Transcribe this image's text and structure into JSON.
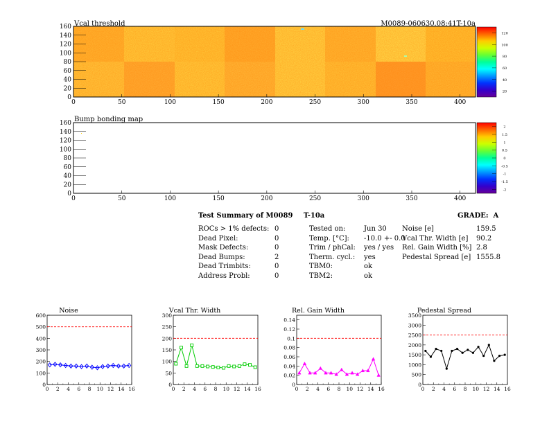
{
  "maps": [
    {
      "title": "Vcal threshold",
      "module_label": "M0089-060630.08:41T-10a",
      "x_ticks": [
        0,
        50,
        100,
        150,
        200,
        250,
        300,
        350,
        400
      ],
      "y_ticks": [
        0,
        20,
        40,
        60,
        80,
        100,
        120,
        140,
        160
      ],
      "xlim": [
        0,
        416
      ],
      "ylim": [
        0,
        160
      ],
      "palette_labels": [
        "120",
        "100",
        "80",
        "60",
        "40",
        "20"
      ]
    },
    {
      "title": "Bump bonding map",
      "x_ticks": [
        0,
        50,
        100,
        150,
        200,
        250,
        300,
        350,
        400
      ],
      "y_ticks": [
        0,
        20,
        40,
        60,
        80,
        100,
        120,
        140,
        160
      ],
      "xlim": [
        0,
        416
      ],
      "ylim": [
        0,
        160
      ],
      "palette_labels": [
        "2",
        "1.5",
        "1",
        "0.5",
        "0",
        "-0.5",
        "-1",
        "-1.5",
        "-2"
      ]
    }
  ],
  "summary": {
    "title": "Test Summary of M0089",
    "test_label": "T-10a",
    "grade": "GRADE:  A",
    "col1": [
      {
        "label": "ROCs > 1% defects:",
        "value": "0"
      },
      {
        "label": "Dead Pixel:",
        "value": "0"
      },
      {
        "label": "Mask Defects:",
        "value": "0"
      },
      {
        "label": "Dead Bumps:",
        "value": "2"
      },
      {
        "label": "Dead Trimbits:",
        "value": "0"
      },
      {
        "label": "Address Probl:",
        "value": "0"
      }
    ],
    "col2": [
      {
        "label": "Tested on:",
        "value": "Jun 30"
      },
      {
        "label": "Temp. [°C]:",
        "value": "-10.0 +- 0.0"
      },
      {
        "label": "Trim / phCal:",
        "value": "yes / yes"
      },
      {
        "label": "Therm. cycl.:",
        "value": "yes"
      },
      {
        "label": "TBM0:",
        "value": "ok"
      },
      {
        "label": "TBM2:",
        "value": "ok"
      }
    ],
    "col3": [
      {
        "label": "Noise [e]",
        "value": "159.5"
      },
      {
        "label": "Vcal Thr. Width [e]",
        "value": "90.2"
      },
      {
        "label": "Rel. Gain Width [%]",
        "value": "2.8"
      },
      {
        "label": "Pedestal Spread [e]",
        "value": "1555.8"
      }
    ]
  },
  "chart_data": [
    {
      "type": "line",
      "title": "Noise",
      "x": [
        0,
        1,
        2,
        3,
        4,
        5,
        6,
        7,
        8,
        9,
        10,
        11,
        12,
        13,
        14,
        15
      ],
      "values": [
        170,
        175,
        170,
        165,
        160,
        160,
        155,
        160,
        150,
        145,
        155,
        160,
        165,
        160,
        160,
        165
      ],
      "xlim": [
        0,
        16
      ],
      "ylim": [
        0,
        600
      ],
      "y_ticks": [
        0,
        100,
        200,
        300,
        400,
        500,
        600
      ],
      "x_ticks": [
        0,
        2,
        4,
        6,
        8,
        10,
        12,
        14,
        16
      ],
      "threshold": 500,
      "color": "#0000ff",
      "marker": "diamond"
    },
    {
      "type": "line",
      "title": "Vcal Thr. Width",
      "x": [
        0,
        1,
        2,
        3,
        4,
        5,
        6,
        7,
        8,
        9,
        10,
        11,
        12,
        13,
        14,
        15
      ],
      "values": [
        90,
        160,
        80,
        170,
        80,
        80,
        78,
        76,
        74,
        72,
        80,
        78,
        80,
        88,
        85,
        75
      ],
      "xlim": [
        0,
        16
      ],
      "ylim": [
        0,
        300
      ],
      "y_ticks": [
        0,
        50,
        100,
        150,
        200,
        250,
        300
      ],
      "x_ticks": [
        0,
        2,
        4,
        6,
        8,
        10,
        12,
        14,
        16
      ],
      "threshold": 200,
      "color": "#00cc00",
      "marker": "square-open"
    },
    {
      "type": "line",
      "title": "Rel. Gain Width",
      "x": [
        0,
        1,
        2,
        3,
        4,
        5,
        6,
        7,
        8,
        9,
        10,
        11,
        12,
        13,
        14,
        15
      ],
      "values": [
        0.025,
        0.045,
        0.025,
        0.025,
        0.035,
        0.025,
        0.025,
        0.022,
        0.032,
        0.022,
        0.025,
        0.022,
        0.03,
        0.03,
        0.055,
        0.02
      ],
      "xlim": [
        0,
        16
      ],
      "ylim": [
        0,
        0.15
      ],
      "y_ticks": [
        0,
        0.02,
        0.04,
        0.06,
        0.08,
        0.1,
        0.12,
        0.14
      ],
      "y_tick_labels": [
        "0",
        "0.02",
        "0.04",
        "0.06",
        "0.08",
        "0.1",
        "0.12",
        "0.14"
      ],
      "x_ticks": [
        0,
        2,
        4,
        6,
        8,
        10,
        12,
        14,
        16
      ],
      "threshold": 0.1,
      "color": "#ff00ff",
      "marker": "triangle"
    },
    {
      "type": "line",
      "title": "Pedestal Spread",
      "x": [
        0,
        1,
        2,
        3,
        4,
        5,
        6,
        7,
        8,
        9,
        10,
        11,
        12,
        13,
        14,
        15
      ],
      "values": [
        1700,
        1400,
        1800,
        1700,
        800,
        1700,
        1800,
        1600,
        1750,
        1600,
        1900,
        1450,
        2000,
        1200,
        1450,
        1500
      ],
      "xlim": [
        0,
        16
      ],
      "ylim": [
        0,
        3500
      ],
      "y_ticks": [
        0,
        500,
        1000,
        1500,
        2000,
        2500,
        3000,
        3500
      ],
      "x_ticks": [
        0,
        2,
        4,
        6,
        8,
        10,
        12,
        14,
        16
      ],
      "threshold": 2500,
      "color": "#000000",
      "marker": "dot"
    }
  ]
}
